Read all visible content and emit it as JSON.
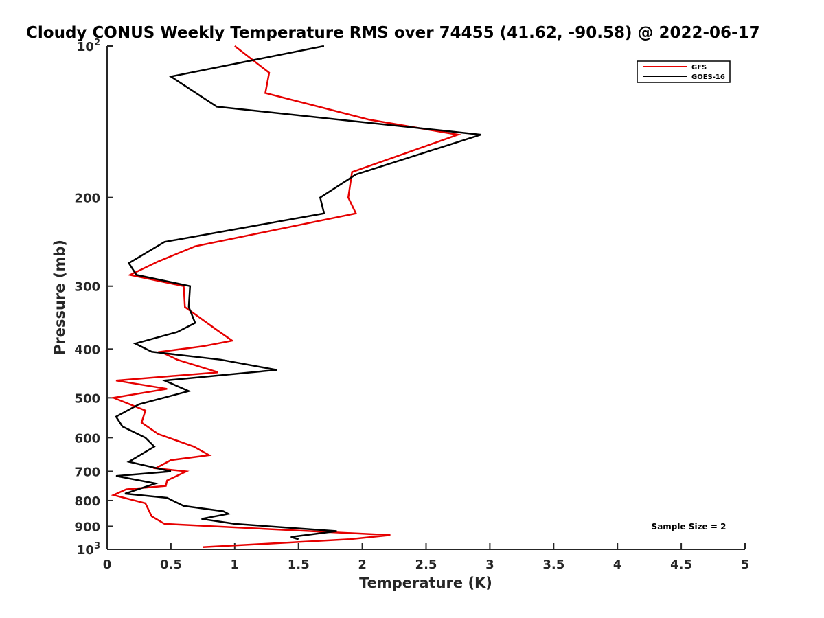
{
  "chart_data": {
    "type": "line",
    "title": "Cloudy CONUS Weekly Temperature RMS over 74455 (41.62, -90.58) @ 2022-06-17",
    "xlabel": "Temperature (K)",
    "ylabel": "Pressure (mb)",
    "xlim": [
      0,
      5
    ],
    "ylim": [
      100,
      1000
    ],
    "y_scale": "log",
    "y_reversed": true,
    "grid": false,
    "legend_position": "top-right",
    "x_ticks": [
      {
        "value": 0,
        "label": "0"
      },
      {
        "value": 0.5,
        "label": "0.5"
      },
      {
        "value": 1,
        "label": "1"
      },
      {
        "value": 1.5,
        "label": "1.5"
      },
      {
        "value": 2,
        "label": "2"
      },
      {
        "value": 2.5,
        "label": "2.5"
      },
      {
        "value": 3,
        "label": "3"
      },
      {
        "value": 3.5,
        "label": "3.5"
      },
      {
        "value": 4,
        "label": "4"
      },
      {
        "value": 4.5,
        "label": "4.5"
      },
      {
        "value": 5,
        "label": "5"
      }
    ],
    "y_ticks": [
      {
        "value": 100,
        "base": "10",
        "exp": "2"
      },
      {
        "value": 200,
        "label": "200"
      },
      {
        "value": 300,
        "label": "300"
      },
      {
        "value": 400,
        "label": "400"
      },
      {
        "value": 500,
        "label": "500"
      },
      {
        "value": 600,
        "label": "600"
      },
      {
        "value": 700,
        "label": "700"
      },
      {
        "value": 800,
        "label": "800"
      },
      {
        "value": 900,
        "label": "900"
      },
      {
        "value": 1000,
        "base": "10",
        "exp": "3"
      }
    ],
    "annotation": "Sample Size = 2",
    "series": [
      {
        "name": "GFS",
        "color": "#e60000",
        "points": [
          [
            1.0,
            100
          ],
          [
            1.27,
            113
          ],
          [
            1.24,
            124
          ],
          [
            2.05,
            140
          ],
          [
            2.75,
            150
          ],
          [
            1.92,
            178
          ],
          [
            1.89,
            200
          ],
          [
            1.95,
            215
          ],
          [
            0.69,
            250
          ],
          [
            0.4,
            268
          ],
          [
            0.18,
            285
          ],
          [
            0.6,
            300
          ],
          [
            0.61,
            330
          ],
          [
            0.85,
            365
          ],
          [
            0.98,
            385
          ],
          [
            0.75,
            395
          ],
          [
            0.42,
            405
          ],
          [
            0.55,
            420
          ],
          [
            0.87,
            445
          ],
          [
            0.07,
            462
          ],
          [
            0.47,
            480
          ],
          [
            0.05,
            500
          ],
          [
            0.3,
            530
          ],
          [
            0.27,
            560
          ],
          [
            0.4,
            590
          ],
          [
            0.68,
            625
          ],
          [
            0.8,
            650
          ],
          [
            0.5,
            665
          ],
          [
            0.38,
            690
          ],
          [
            0.62,
            700
          ],
          [
            0.47,
            730
          ],
          [
            0.46,
            748
          ],
          [
            0.15,
            760
          ],
          [
            0.05,
            780
          ],
          [
            0.3,
            810
          ],
          [
            0.35,
            860
          ],
          [
            0.45,
            890
          ],
          [
            2.22,
            937
          ],
          [
            1.9,
            955
          ],
          [
            0.75,
            990
          ]
        ]
      },
      {
        "name": "GOES-16",
        "color": "#000000",
        "points": [
          [
            1.7,
            100
          ],
          [
            0.5,
            115
          ],
          [
            0.86,
            132
          ],
          [
            2.93,
            150
          ],
          [
            1.95,
            180
          ],
          [
            1.67,
            200
          ],
          [
            1.7,
            215
          ],
          [
            0.45,
            245
          ],
          [
            0.17,
            270
          ],
          [
            0.23,
            285
          ],
          [
            0.65,
            300
          ],
          [
            0.64,
            330
          ],
          [
            0.69,
            355
          ],
          [
            0.55,
            370
          ],
          [
            0.22,
            390
          ],
          [
            0.35,
            405
          ],
          [
            0.89,
            420
          ],
          [
            1.33,
            440
          ],
          [
            0.45,
            462
          ],
          [
            0.64,
            485
          ],
          [
            0.25,
            515
          ],
          [
            0.07,
            545
          ],
          [
            0.12,
            570
          ],
          [
            0.3,
            600
          ],
          [
            0.37,
            625
          ],
          [
            0.17,
            670
          ],
          [
            0.5,
            700
          ],
          [
            0.07,
            715
          ],
          [
            0.38,
            740
          ],
          [
            0.14,
            775
          ],
          [
            0.47,
            790
          ],
          [
            0.6,
            820
          ],
          [
            0.91,
            840
          ],
          [
            0.95,
            850
          ],
          [
            0.74,
            870
          ],
          [
            1.0,
            890
          ],
          [
            1.8,
            920
          ],
          [
            1.44,
            945
          ],
          [
            1.5,
            955
          ]
        ]
      }
    ]
  }
}
